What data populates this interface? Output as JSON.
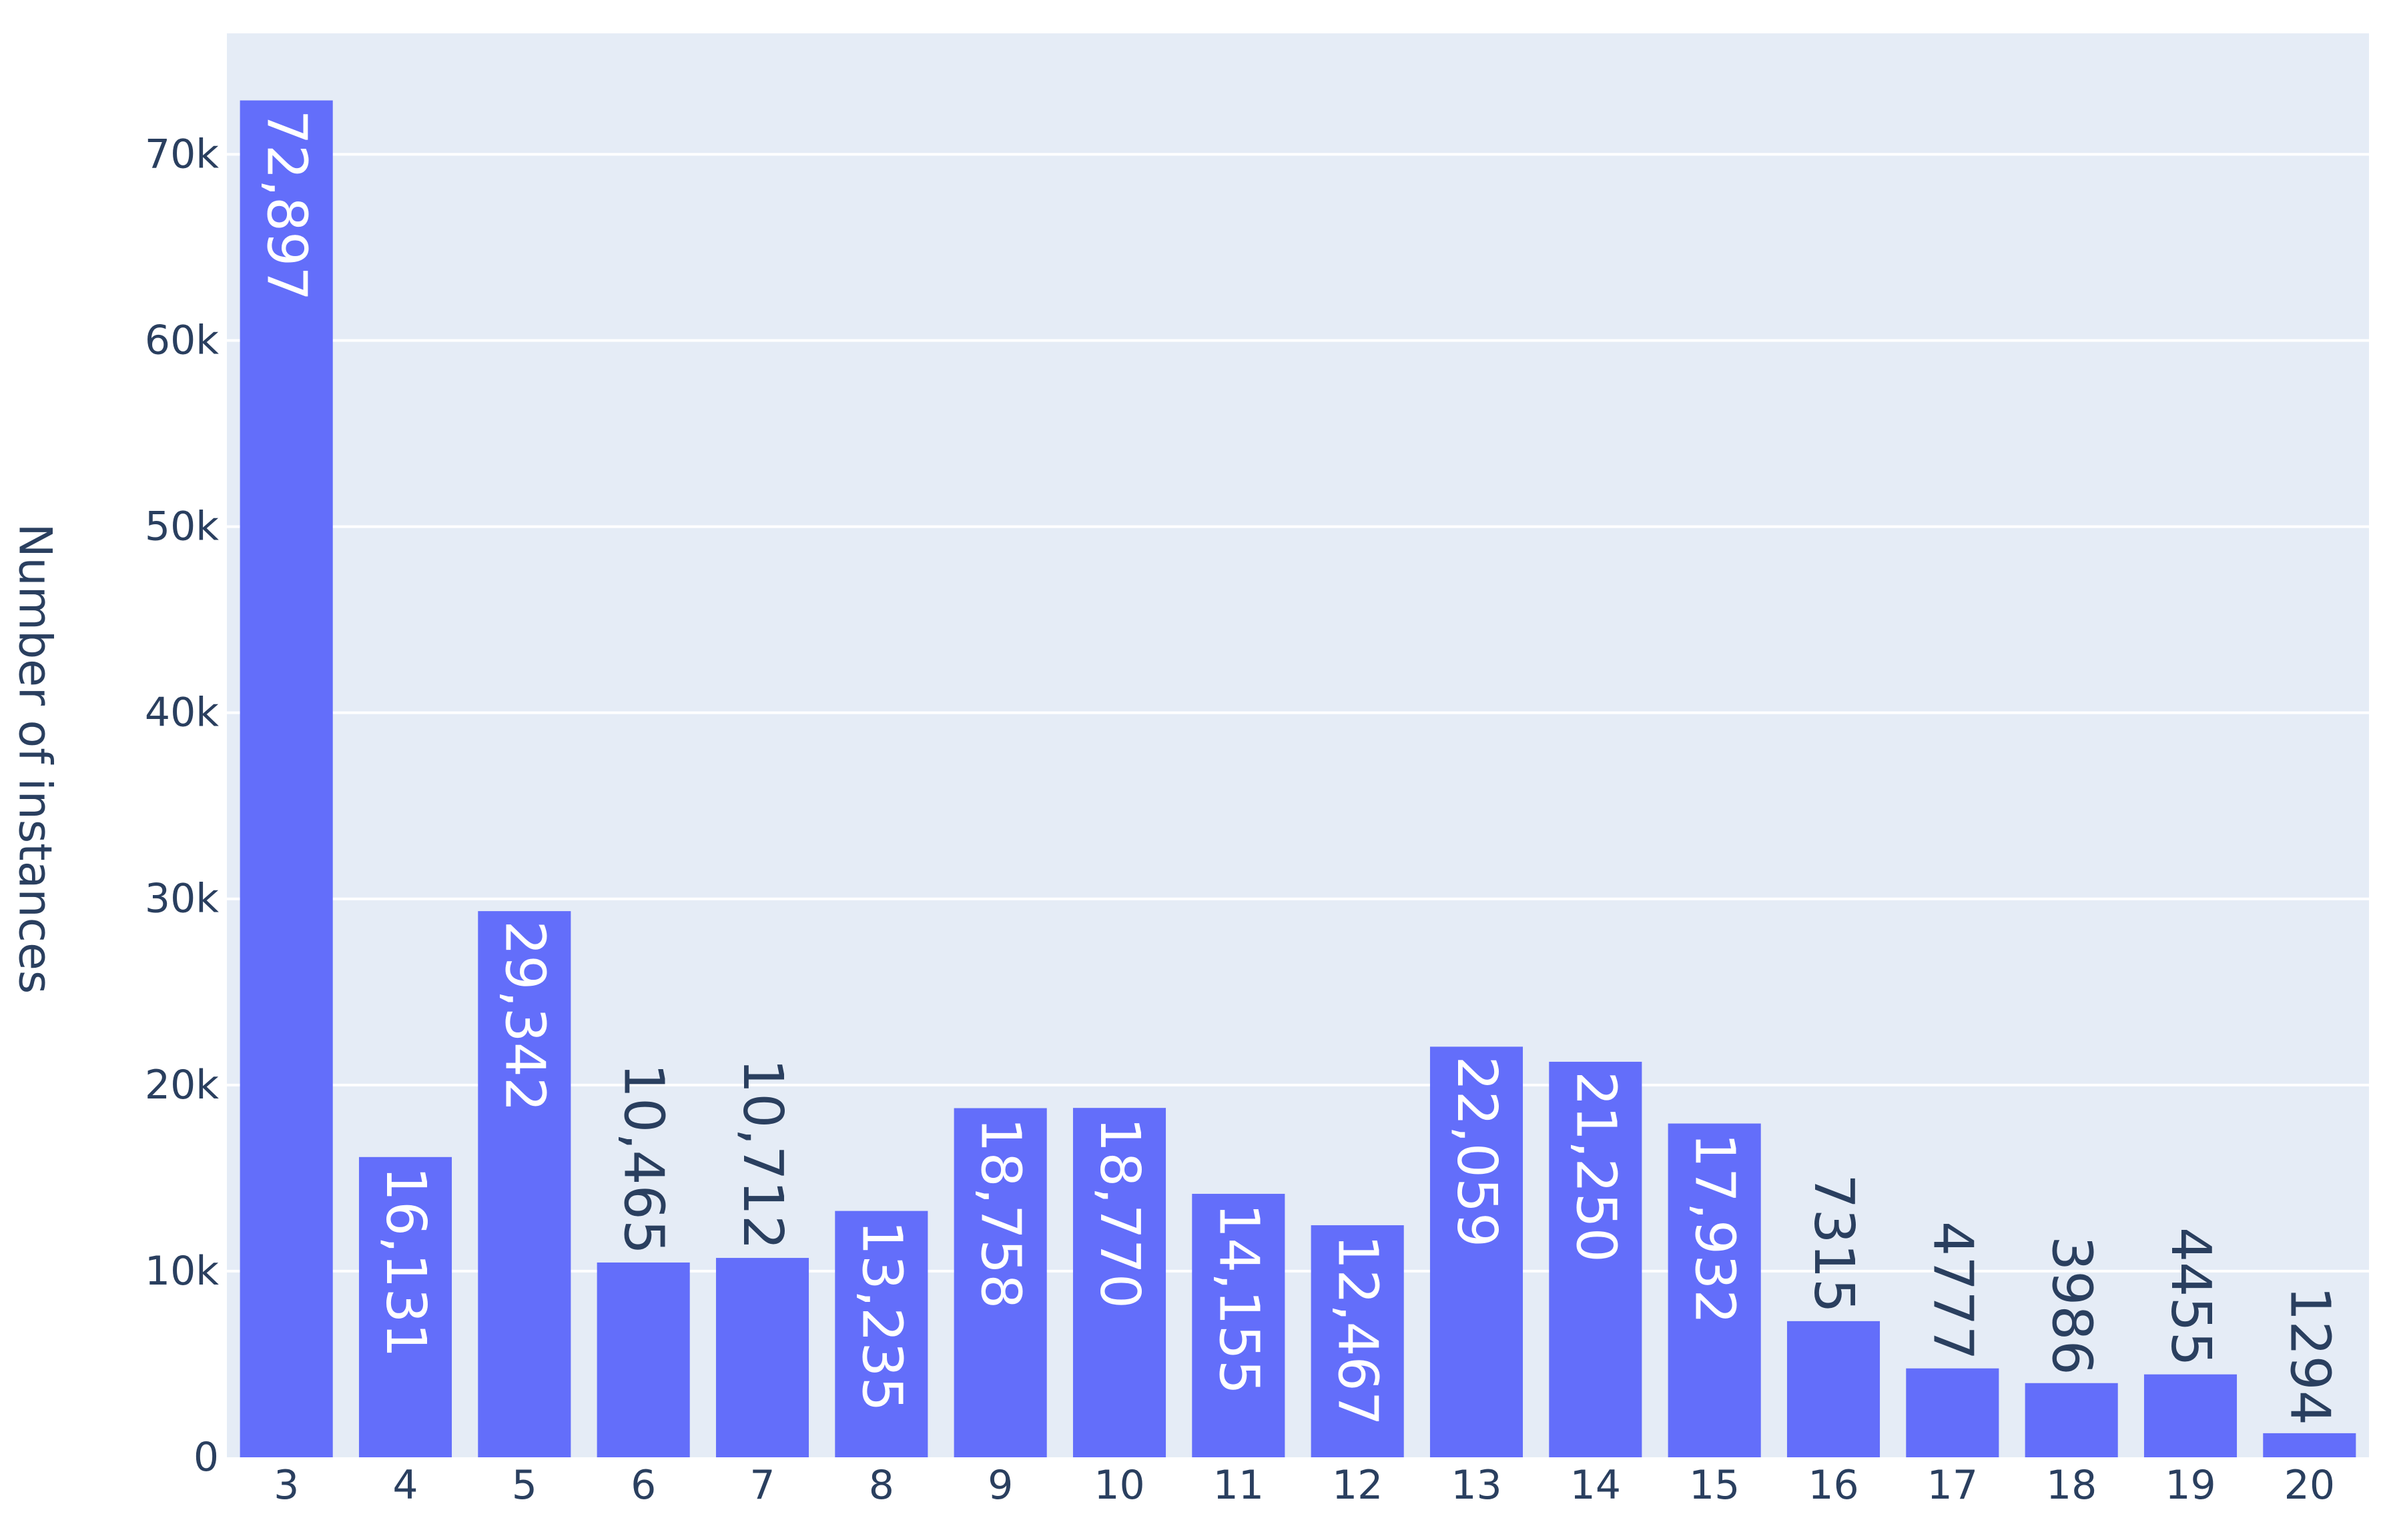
{
  "chart_data": {
    "type": "bar",
    "title": "",
    "xlabel": "",
    "ylabel": "Number of instances",
    "categories": [
      "3",
      "4",
      "5",
      "6",
      "7",
      "8",
      "9",
      "10",
      "11",
      "12",
      "13",
      "14",
      "15",
      "16",
      "17",
      "18",
      "19",
      "20"
    ],
    "values": [
      72897,
      16131,
      29342,
      10465,
      10712,
      13235,
      18758,
      18770,
      14155,
      12467,
      22059,
      21250,
      17932,
      7315,
      4777,
      3986,
      4455,
      1294
    ],
    "value_labels": [
      "72,897",
      "16,131",
      "29,342",
      "10,465",
      "10,712",
      "13,235",
      "18,758",
      "18,770",
      "14,155",
      "12,467",
      "22,059",
      "21,250",
      "17,932",
      "7315",
      "4777",
      "3986",
      "4455",
      "1294"
    ],
    "ylim": [
      0,
      76500
    ],
    "yticks": [
      0,
      10000,
      20000,
      30000,
      40000,
      50000,
      60000,
      70000
    ],
    "ytick_labels": [
      "0",
      "10k",
      "20k",
      "30k",
      "40k",
      "50k",
      "60k",
      "70k"
    ],
    "grid": true,
    "colors": {
      "bar": "#636efa",
      "plot_background": "#e5ecf6",
      "grid": "#ffffff",
      "text": "#2a3f5f",
      "label_inside": "#ffffff",
      "label_outside": "#2a3f5f"
    }
  }
}
